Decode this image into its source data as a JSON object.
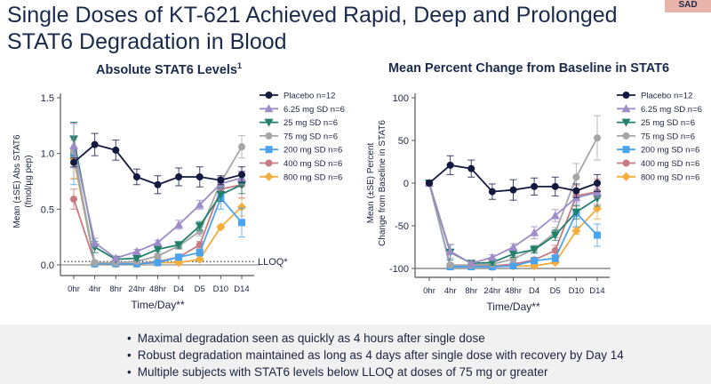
{
  "header": {
    "title": "Single Doses of KT-621 Achieved Rapid, Deep and Prolonged STAT6 Degradation in Blood",
    "tag": "SAD"
  },
  "bullets": [
    "Maximal degradation seen as quickly as 4 hours after single dose",
    "Robust degradation maintained as long as 4 days after single dose with recovery by Day 14",
    "Multiple subjects with STAT6 levels below LLOQ at doses of 75 mg or greater"
  ],
  "chart_data": [
    {
      "type": "line",
      "title": "Absolute STAT6 Levels",
      "title_sup": "1",
      "xlabel": "Time/Day**",
      "ylabel": "Mean (±SE) Abs STAT6 (fmol/µg pep)",
      "categories": [
        "0hr",
        "4hr",
        "8hr",
        "24hr",
        "48hr",
        "D4",
        "D5",
        "D10",
        "D14"
      ],
      "ylim": [
        0,
        1.5
      ],
      "yticks": [
        "0.0",
        "0.5",
        "1.0",
        "1.5"
      ],
      "ytick_values": [
        0,
        0.5,
        1.0,
        1.5
      ],
      "reference_line": {
        "label": "LLOQ*",
        "value": 0.03
      },
      "legend_position": "right",
      "grid": false,
      "series": [
        {
          "name": "Placebo n=12",
          "color": "#14193f",
          "marker": "circle",
          "values": [
            0.92,
            1.08,
            1.03,
            0.79,
            0.72,
            0.79,
            0.79,
            0.76,
            0.81
          ],
          "se": [
            0.04,
            0.1,
            0.09,
            0.07,
            0.08,
            0.08,
            0.09,
            0.04,
            0.07
          ]
        },
        {
          "name": "6.25 mg SD n=6",
          "color": "#9e8cc6",
          "marker": "triangle-up",
          "values": [
            1.07,
            0.2,
            0.06,
            0.12,
            0.2,
            0.36,
            0.54,
            0.73,
            0.78
          ],
          "se": [
            0.2,
            0.04,
            0.01,
            0.02,
            0.02,
            0.04,
            0.04,
            0.05,
            0.06
          ]
        },
        {
          "name": "25 mg SD n=6",
          "color": "#22806b",
          "marker": "triangle-down",
          "values": [
            1.13,
            0.16,
            0.05,
            0.06,
            0.14,
            0.18,
            0.35,
            0.63,
            0.72
          ],
          "se": [
            0.15,
            0.05,
            0.01,
            0.02,
            0.02,
            0.03,
            0.04,
            0.06,
            0.08
          ]
        },
        {
          "name": "75 mg SD n=6",
          "color": "#a6a6a6",
          "marker": "circle",
          "values": [
            1.02,
            0.02,
            0.02,
            0.03,
            0.08,
            0.17,
            0.3,
            0.74,
            1.06
          ],
          "se": [
            0.25,
            0.01,
            0.01,
            0.01,
            0.02,
            0.03,
            0.04,
            0.05,
            0.1
          ]
        },
        {
          "name": "200 mg SD n=6",
          "color": "#4aa3ee",
          "marker": "square",
          "values": [
            1.0,
            0.01,
            0.01,
            0.01,
            0.02,
            0.07,
            0.11,
            0.6,
            0.38
          ],
          "se": [
            0.28,
            0.01,
            0.01,
            0.01,
            0.01,
            0.02,
            0.03,
            0.1,
            0.13
          ]
        },
        {
          "name": "400 mg SD n=6",
          "color": "#c67a82",
          "marker": "circle",
          "values": [
            0.59,
            0.02,
            0.01,
            0.01,
            0.03,
            0.07,
            0.18,
            0.68,
            0.72
          ],
          "se": [
            0.09,
            0.01,
            0.01,
            0.01,
            0.01,
            0.02,
            0.03,
            0.1,
            0.12
          ]
        },
        {
          "name": "800 mg SD n=6",
          "color": "#f5ad3b",
          "marker": "diamond",
          "values": [
            0.95,
            0.01,
            0.01,
            0.01,
            0.02,
            0.02,
            0.05,
            0.34,
            0.52
          ],
          "se": [
            0.17,
            0.01,
            0.01,
            0.01,
            0.01,
            0.01,
            0.01,
            0.02,
            0.08
          ]
        }
      ]
    },
    {
      "type": "line",
      "title": "Mean Percent Change from Baseline in STAT6",
      "xlabel": "Time/Day**",
      "ylabel": "Mean (±SE) Percent Change from Baseline in STAT6",
      "categories": [
        "0hr",
        "4hr",
        "8hr",
        "24hr",
        "48hr",
        "D4",
        "D5",
        "D10",
        "D14"
      ],
      "ylim": [
        -100,
        100
      ],
      "yticks": [
        "-100",
        "-50",
        "0",
        "50",
        "100"
      ],
      "ytick_values": [
        -100,
        -50,
        0,
        50,
        100
      ],
      "reference_line": {
        "label": "",
        "value": -100
      },
      "legend_position": "right",
      "grid": false,
      "series": [
        {
          "name": "Placebo n=12",
          "color": "#14193f",
          "marker": "circle",
          "values": [
            0,
            21,
            17,
            -10,
            -8,
            -4,
            -4,
            -9,
            0
          ],
          "se": [
            1,
            11,
            10,
            9,
            12,
            10,
            11,
            8,
            10
          ]
        },
        {
          "name": "6.25 mg SD n=6",
          "color": "#9e8cc6",
          "marker": "triangle-up",
          "values": [
            0,
            -80,
            -94,
            -87,
            -75,
            -58,
            -38,
            -17,
            -11
          ],
          "se": [
            1,
            8,
            2,
            3,
            4,
            7,
            7,
            6,
            6
          ]
        },
        {
          "name": "25 mg SD n=6",
          "color": "#22806b",
          "marker": "triangle-down",
          "values": [
            0,
            -81,
            -94,
            -93,
            -83,
            -78,
            -61,
            -34,
            -18
          ],
          "se": [
            1,
            9,
            2,
            3,
            4,
            4,
            6,
            8,
            9
          ]
        },
        {
          "name": "75 mg SD n=6",
          "color": "#a6a6a6",
          "marker": "circle",
          "values": [
            0,
            -96,
            -96,
            -95,
            -89,
            -77,
            -58,
            7,
            53
          ],
          "se": [
            1,
            2,
            2,
            2,
            4,
            4,
            6,
            16,
            26
          ]
        },
        {
          "name": "200 mg SD n=6",
          "color": "#4aa3ee",
          "marker": "square",
          "values": [
            0,
            -98,
            -98,
            -98,
            -97,
            -91,
            -88,
            -35,
            -61
          ],
          "se": [
            1,
            1,
            1,
            1,
            1,
            3,
            4,
            16,
            13
          ]
        },
        {
          "name": "400 mg SD n=6",
          "color": "#c67a82",
          "marker": "circle",
          "values": [
            0,
            -96,
            -97,
            -97,
            -95,
            -90,
            -79,
            -15,
            -10
          ],
          "se": [
            1,
            2,
            1,
            1,
            2,
            3,
            6,
            12,
            15
          ]
        },
        {
          "name": "800 mg SD n=6",
          "color": "#f5ad3b",
          "marker": "diamond",
          "values": [
            0,
            -97,
            -97,
            -98,
            -97,
            -97,
            -93,
            -56,
            -30
          ],
          "se": [
            1,
            1,
            1,
            1,
            1,
            1,
            2,
            4,
            12
          ]
        }
      ]
    }
  ]
}
